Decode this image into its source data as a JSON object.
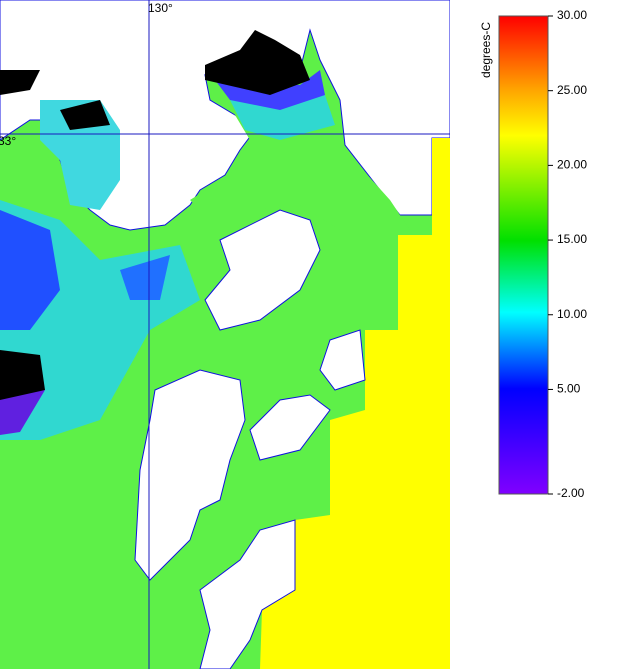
{
  "map": {
    "longitude_label": "130°",
    "latitude_label": "33°"
  },
  "colorbar": {
    "title": "degrees-C",
    "ticks": [
      {
        "value": 30,
        "label": "30.00"
      },
      {
        "value": 25,
        "label": "25.00"
      },
      {
        "value": 20,
        "label": "20.00"
      },
      {
        "value": 15,
        "label": "15.00"
      },
      {
        "value": 10,
        "label": "10.00"
      },
      {
        "value": 5,
        "label": "5.00"
      },
      {
        "value": -2,
        "label": "-2.00"
      }
    ]
  }
}
